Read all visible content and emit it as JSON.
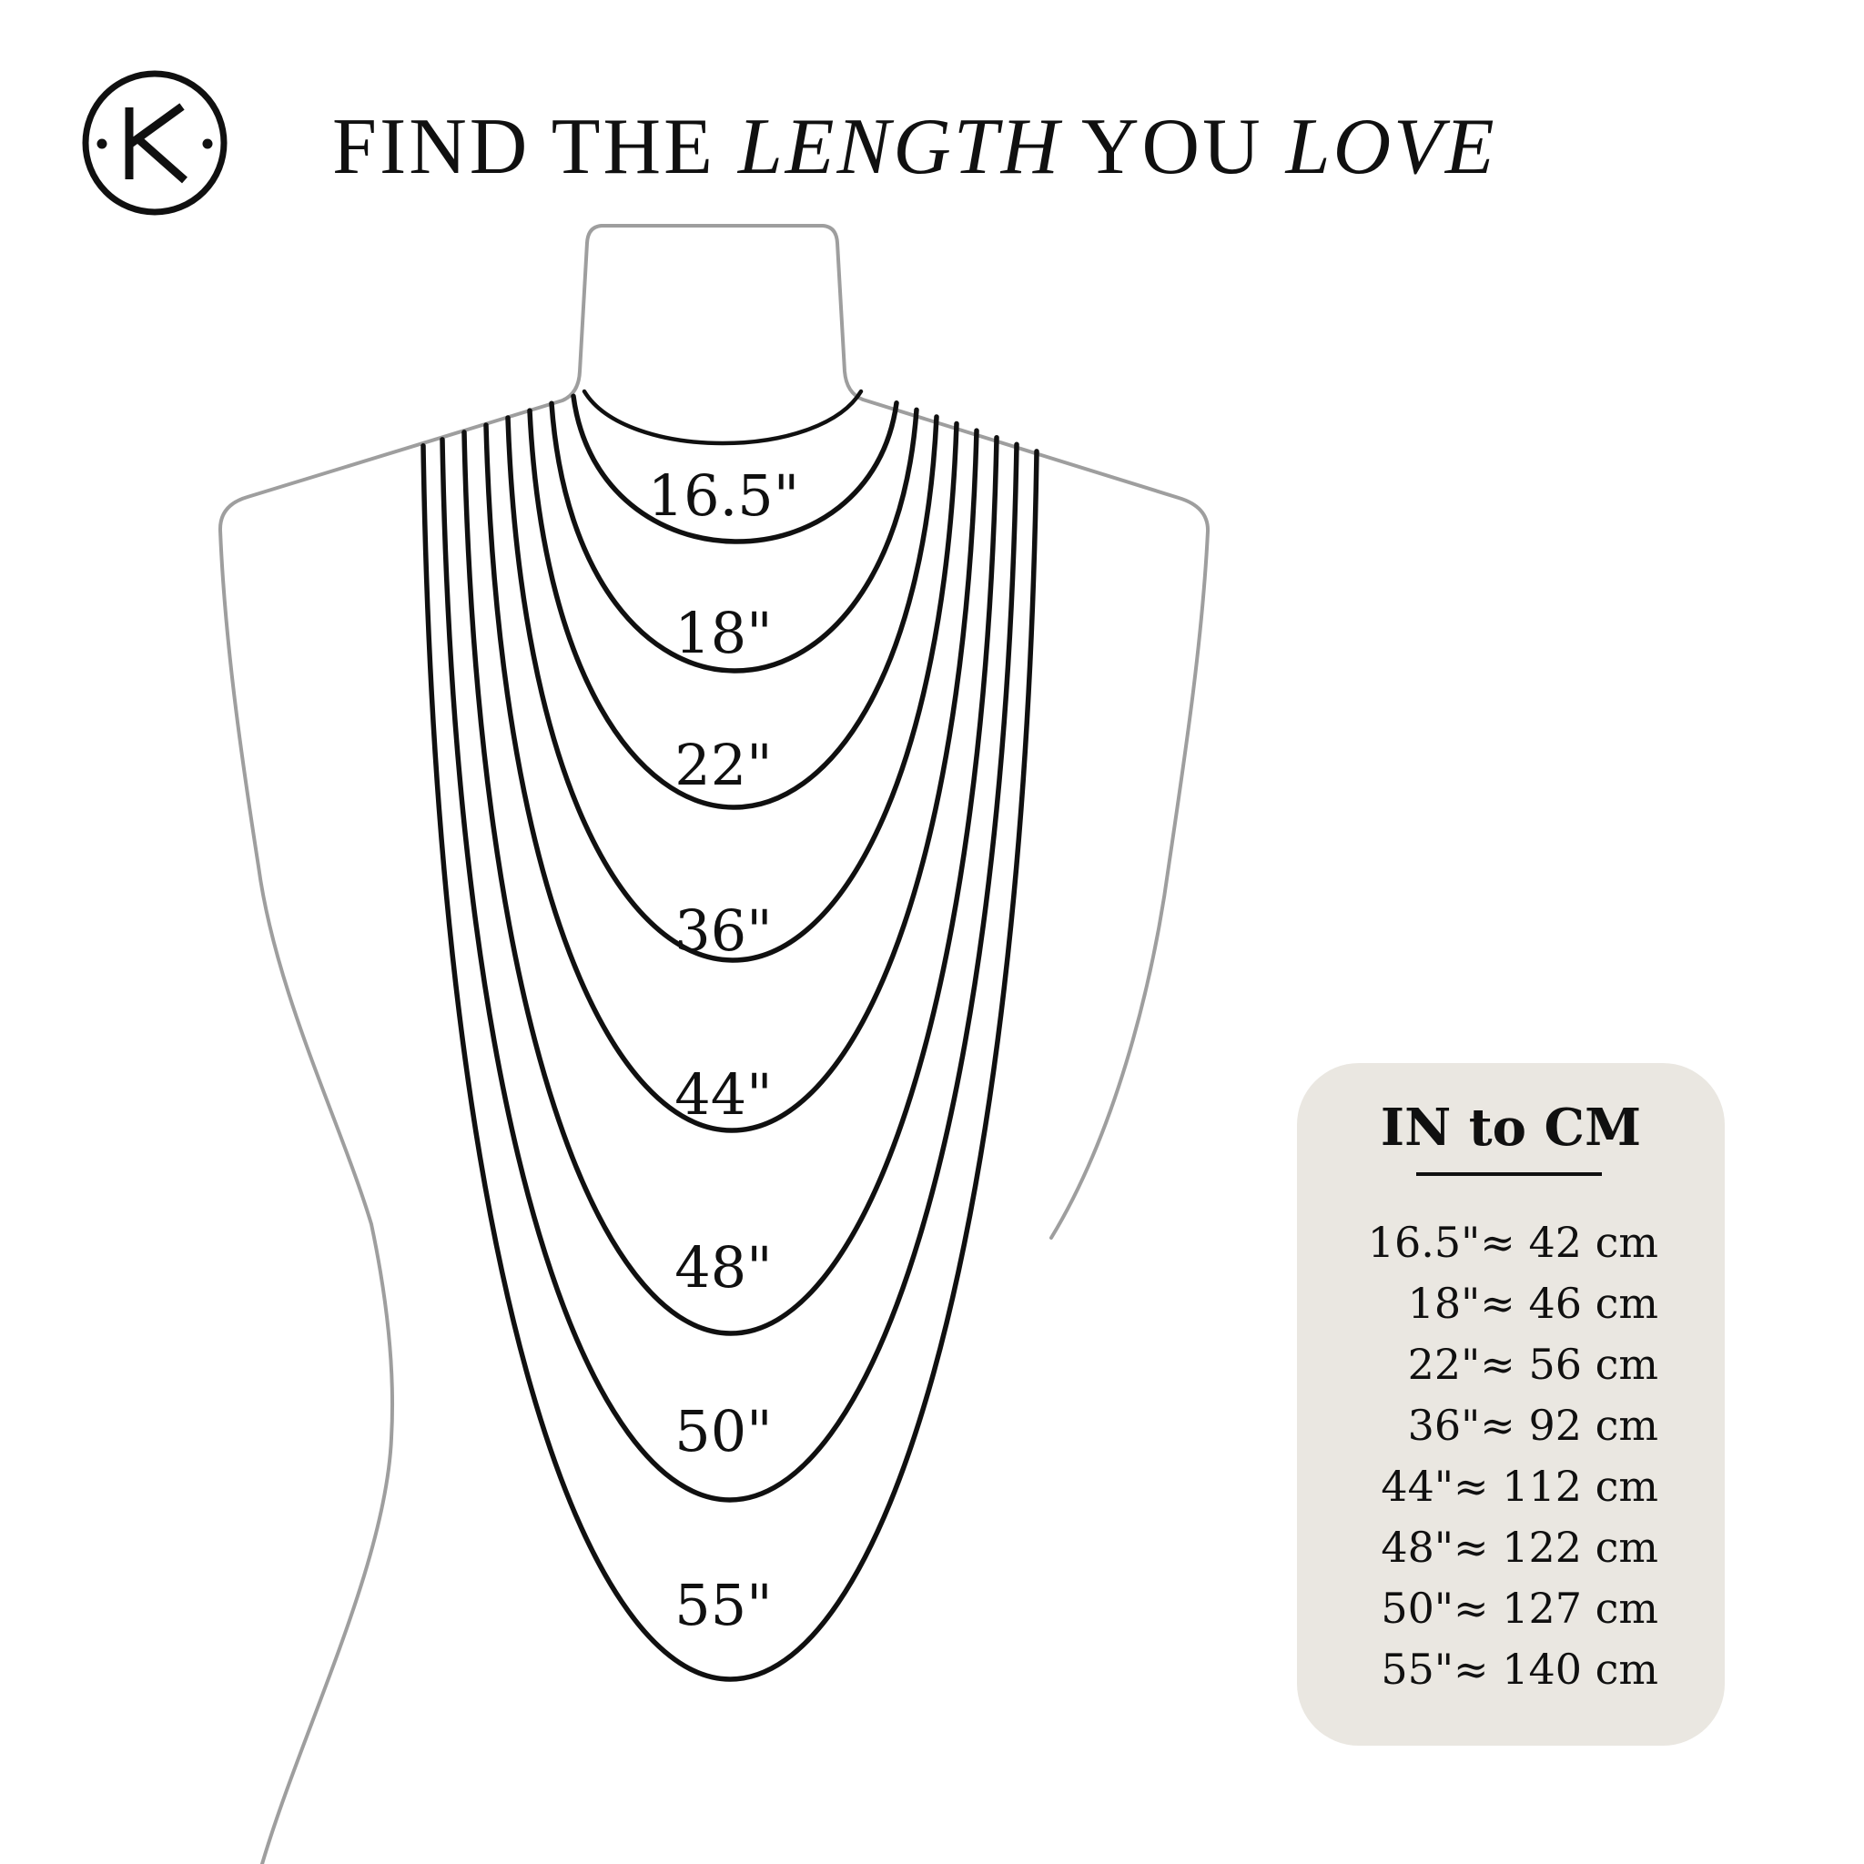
{
  "brand": {
    "initial": "K"
  },
  "title": {
    "parts": [
      {
        "text": "FIND THE ",
        "style": "regular"
      },
      {
        "text": "LENGTH",
        "style": "italic"
      },
      {
        "text": " YOU ",
        "style": "regular"
      },
      {
        "text": "LOVE",
        "style": "italic"
      }
    ]
  },
  "necklace_guide": {
    "lengths": [
      {
        "label": "16.5\""
      },
      {
        "label": "18\""
      },
      {
        "label": "22\""
      },
      {
        "label": "36\""
      },
      {
        "label": "44\""
      },
      {
        "label": "48\""
      },
      {
        "label": "50\""
      },
      {
        "label": "55\""
      }
    ]
  },
  "conversion_panel": {
    "title": "IN to CM",
    "separator": "≈ ",
    "rows": [
      {
        "inches": "16.5\"",
        "cm": "42 cm"
      },
      {
        "inches": "18\"",
        "cm": "46 cm"
      },
      {
        "inches": "22\"",
        "cm": "56 cm"
      },
      {
        "inches": "36\"",
        "cm": "92 cm"
      },
      {
        "inches": "44\"",
        "cm": "112 cm"
      },
      {
        "inches": "48\"",
        "cm": "122 cm"
      },
      {
        "inches": "50\"",
        "cm": "127 cm"
      },
      {
        "inches": "55\"",
        "cm": "140 cm"
      }
    ]
  },
  "colors": {
    "ink": "#101010",
    "outline_gray": "#9e9e9e",
    "panel_bg": "#eae7e1",
    "background": "#ffffff"
  }
}
